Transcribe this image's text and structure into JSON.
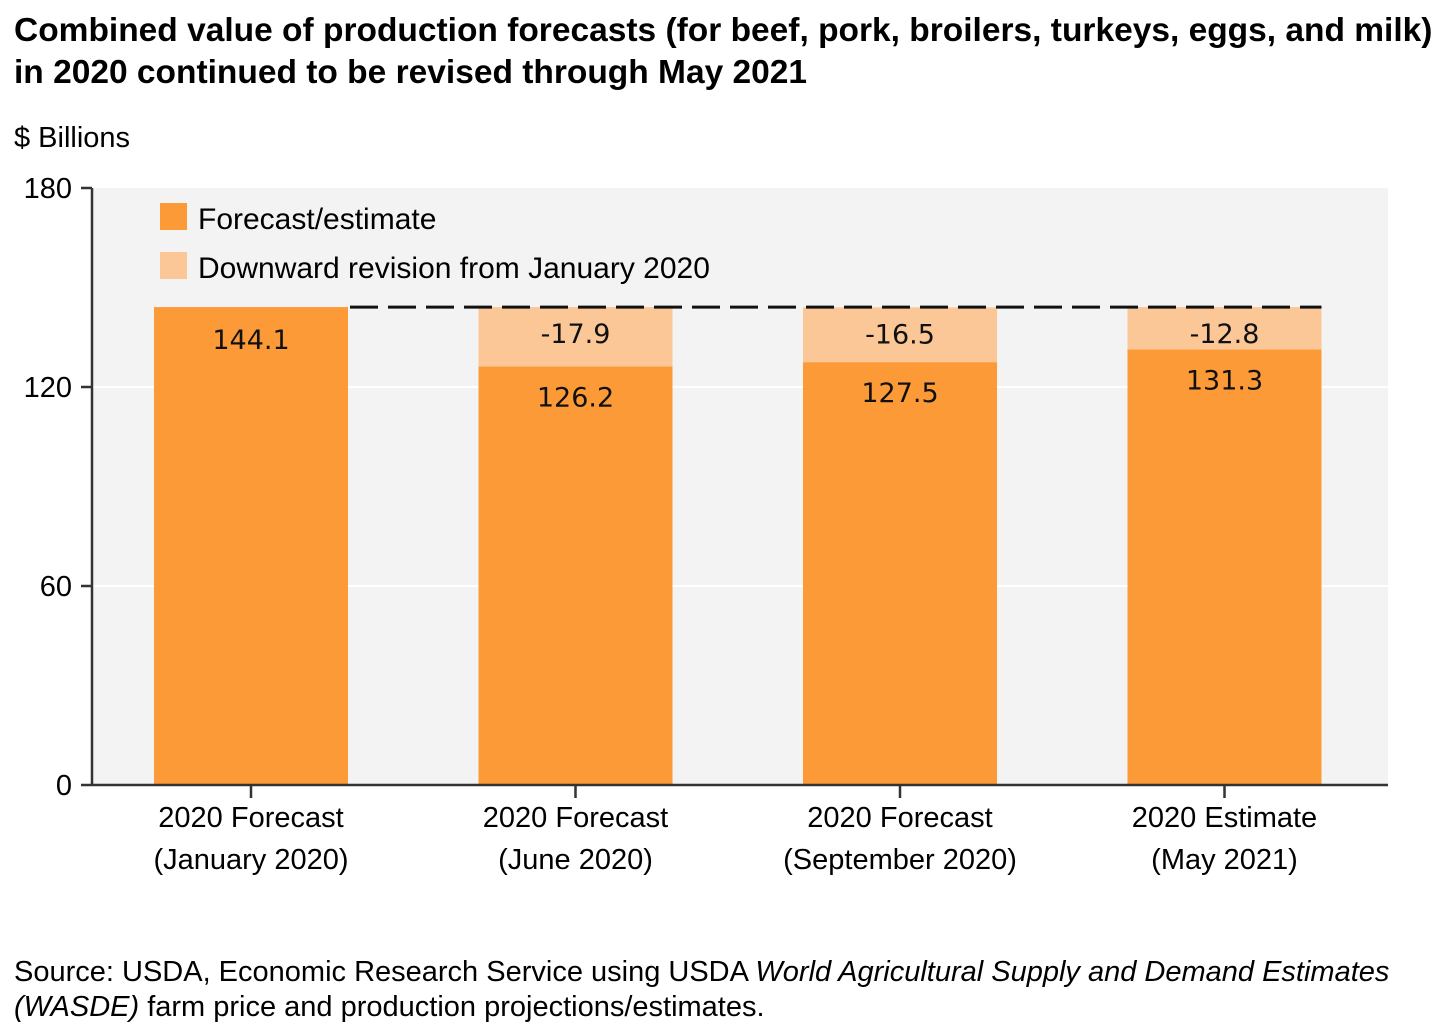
{
  "title": "Combined value of production forecasts (for beef, pork, broilers, turkeys, eggs, and milk) in 2020 continued to be revised through May 2021",
  "source": {
    "prefix": "Source: USDA, Economic Research Service using USDA ",
    "italic": "World Agricultural Supply and Demand Estimates (WASDE)",
    "suffix": " farm price and production projections/estimates."
  },
  "colors": {
    "forecast": "#fd9a38",
    "revision": "#fbc796",
    "plot_background": "#f3f3f3",
    "gridline": "#ffffff",
    "axis": "#333333"
  },
  "chart_data": {
    "type": "bar",
    "stacked": true,
    "title": "Combined value of production forecasts (for beef, pork, broilers, turkeys, eggs, and milk) in 2020 continued to be revised through May 2021",
    "xlabel": "",
    "ylabel": "$ Billions",
    "ylim": [
      0,
      180
    ],
    "yticks": [
      0,
      60,
      120,
      180
    ],
    "grid": true,
    "legend_position": "top-left",
    "categories": [
      [
        "2020 Forecast",
        "(January 2020)"
      ],
      [
        "2020 Forecast",
        "(June 2020)"
      ],
      [
        "2020 Forecast",
        "(September 2020)"
      ],
      [
        "2020 Estimate",
        "(May 2021)"
      ]
    ],
    "series": [
      {
        "name": "Forecast/estimate",
        "values": [
          144.1,
          126.2,
          127.5,
          131.3
        ],
        "labels": [
          "144.1",
          "126.2",
          "127.5",
          "131.3"
        ]
      },
      {
        "name": "Downward revision from January 2020",
        "values": [
          0,
          17.9,
          16.5,
          12.8
        ],
        "labels": [
          "",
          "-17.9",
          "-16.5",
          "-12.8"
        ]
      }
    ],
    "reference_line": {
      "value": 144.1,
      "style": "dashed",
      "description": "January 2020 forecast level"
    }
  }
}
